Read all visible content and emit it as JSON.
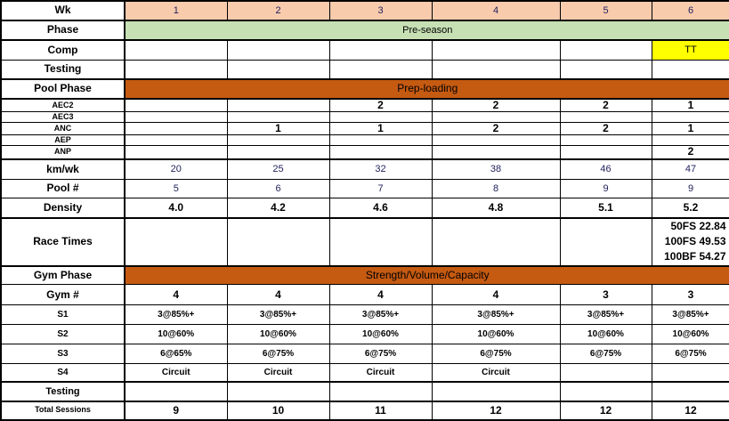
{
  "colors": {
    "week_header": "#f8cbad",
    "phase": "#c6e0b4",
    "pool_phase": "#c55a11",
    "comp_highlight": "#ffff00"
  },
  "header": {
    "label": "Wk",
    "weeks": [
      "1",
      "2",
      "3",
      "4",
      "5",
      "6"
    ]
  },
  "phase": {
    "label": "Phase",
    "value": "Pre-season"
  },
  "comp": {
    "label": "Comp",
    "values": [
      "",
      "",
      "",
      "",
      "",
      "TT"
    ]
  },
  "testing_pool": {
    "label": "Testing",
    "values": [
      "",
      "",
      "",
      "",
      "",
      ""
    ]
  },
  "pool_phase": {
    "label": "Pool Phase",
    "value": "Prep-loading"
  },
  "pool_rows": [
    {
      "label": "AEC2",
      "values": [
        "",
        "",
        "2",
        "2",
        "2",
        "1"
      ]
    },
    {
      "label": "AEC3",
      "values": [
        "",
        "",
        "",
        "",
        "",
        ""
      ]
    },
    {
      "label": "ANC",
      "values": [
        "",
        "1",
        "1",
        "2",
        "2",
        "1"
      ]
    },
    {
      "label": "AEP",
      "values": [
        "",
        "",
        "",
        "",
        "",
        ""
      ]
    },
    {
      "label": "ANP",
      "values": [
        "",
        "",
        "",
        "",
        "",
        "2"
      ]
    }
  ],
  "km_wk": {
    "label": "km/wk",
    "values": [
      "20",
      "25",
      "32",
      "38",
      "46",
      "47"
    ]
  },
  "pool_count": {
    "label": "Pool #",
    "values": [
      "5",
      "6",
      "7",
      "8",
      "9",
      "9"
    ]
  },
  "density": {
    "label": "Density",
    "values": [
      "4.0",
      "4.2",
      "4.6",
      "4.8",
      "5.1",
      "5.2"
    ]
  },
  "race_times": {
    "label": "Race Times",
    "values": [
      "",
      "",
      "",
      "",
      "",
      [
        "50FS 22.84",
        "100FS 49.53",
        "100BF 54.27"
      ]
    ]
  },
  "gym_phase": {
    "label": "Gym Phase",
    "value": "Strength/Volume/Capacity"
  },
  "gym_count": {
    "label": "Gym #",
    "values": [
      "4",
      "4",
      "4",
      "4",
      "3",
      "3"
    ]
  },
  "gym_rows": [
    {
      "label": "S1",
      "values": [
        "3@85%+",
        "3@85%+",
        "3@85%+",
        "3@85%+",
        "3@85%+",
        "3@85%+"
      ]
    },
    {
      "label": "S2",
      "values": [
        "10@60%",
        "10@60%",
        "10@60%",
        "10@60%",
        "10@60%",
        "10@60%"
      ]
    },
    {
      "label": "S3",
      "values": [
        "6@65%",
        "6@75%",
        "6@75%",
        "6@75%",
        "6@75%",
        "6@75%"
      ]
    },
    {
      "label": "S4",
      "values": [
        "Circuit",
        "Circuit",
        "Circuit",
        "Circuit",
        "",
        ""
      ]
    }
  ],
  "testing_gym": {
    "label": "Testing",
    "values": [
      "",
      "",
      "",
      "",
      "",
      ""
    ]
  },
  "total_sessions": {
    "label": "Total Sessions",
    "values": [
      "9",
      "10",
      "11",
      "12",
      "12",
      "12"
    ]
  }
}
